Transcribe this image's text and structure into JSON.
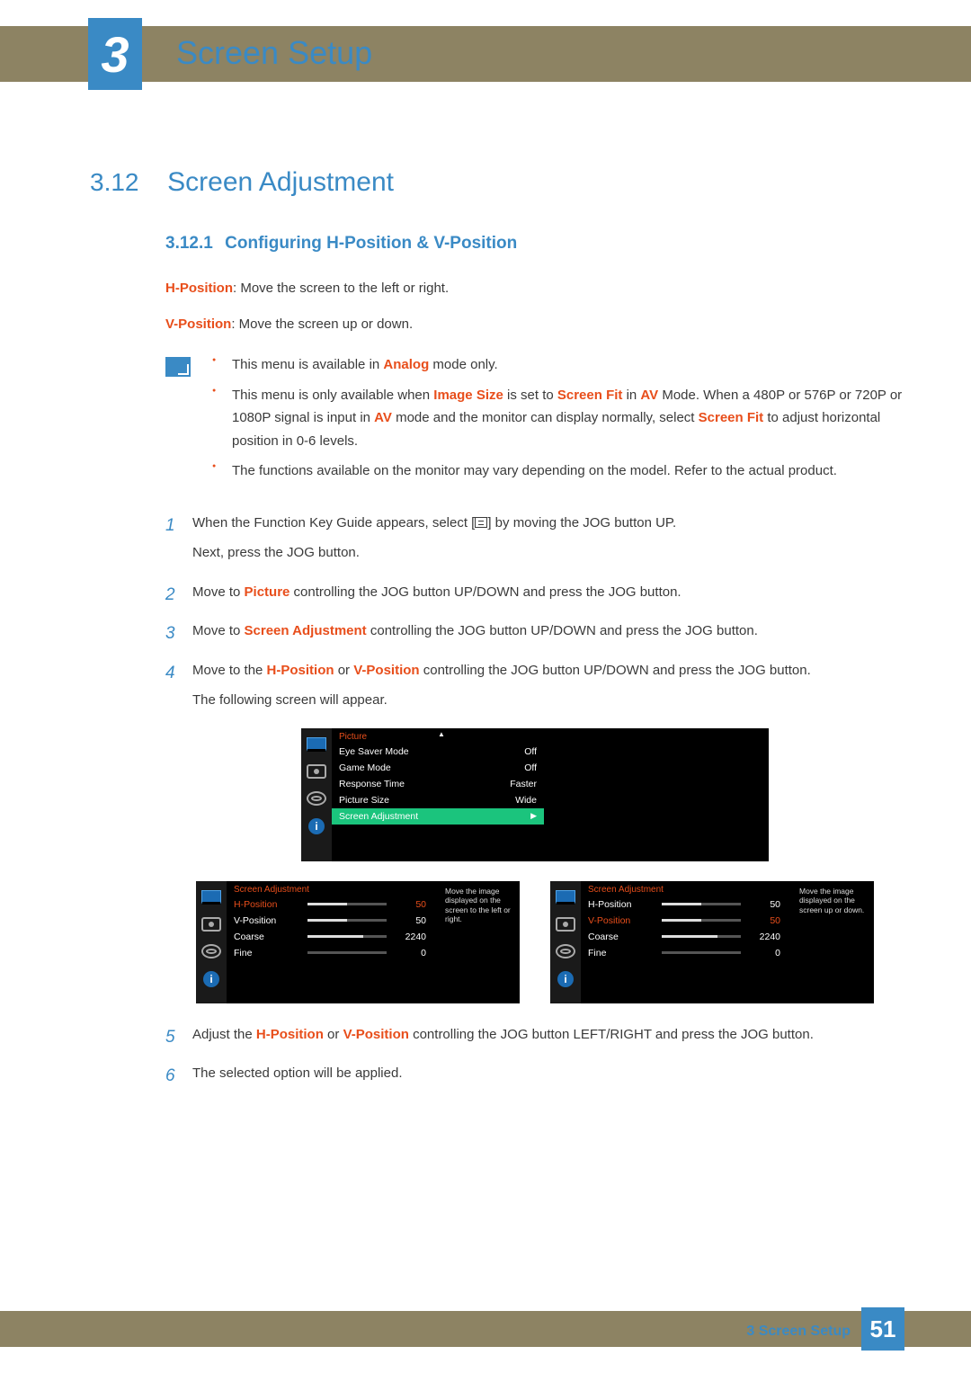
{
  "chapter": {
    "number": "3",
    "title": "Screen Setup"
  },
  "section": {
    "number": "3.12",
    "title": "Screen Adjustment"
  },
  "subsection": {
    "number": "3.12.1",
    "title": "Configuring H-Position & V-Position"
  },
  "intro": {
    "hpos_label": "H-Position",
    "hpos_text": ": Move the screen to the left or right.",
    "vpos_label": "V-Position",
    "vpos_text": ": Move the screen up or down."
  },
  "notes": {
    "b1_pre": "This menu is available in ",
    "b1_k1": "Analog",
    "b1_post": " mode only.",
    "b2_pre": "This menu is only available when ",
    "b2_k1": "Image Size",
    "b2_mid1": " is set to ",
    "b2_k2": "Screen Fit",
    "b2_mid2": " in ",
    "b2_k3": "AV",
    "b2_mid3": " Mode. When a 480P or 576P or 720P or 1080P signal is input in ",
    "b2_k4": "AV",
    "b2_mid4": " mode and the monitor can display normally, select ",
    "b2_k5": "Screen Fit",
    "b2_post": " to adjust horizontal position in 0-6 levels.",
    "b3": "The functions available on the monitor may vary depending on the model. Refer to the actual product."
  },
  "steps": {
    "s1a": "When the Function Key Guide appears, select [",
    "s1b": "] by moving the JOG button UP.",
    "s1c": "Next, press the JOG button.",
    "s2_pre": "Move to ",
    "s2_k": "Picture",
    "s2_post": " controlling the JOG button UP/DOWN and press the JOG button.",
    "s3_pre": "Move to ",
    "s3_k": "Screen Adjustment",
    "s3_post": " controlling the JOG button UP/DOWN and press the JOG button.",
    "s4_pre": "Move to the ",
    "s4_k1": "H-Position",
    "s4_or": " or ",
    "s4_k2": "V-Position",
    "s4_post": " controlling the JOG button UP/DOWN and press the JOG button.",
    "s4b": "The following screen will appear.",
    "s5_pre": "Adjust the ",
    "s5_k1": "H-Position",
    "s5_or": " or ",
    "s5_k2": "V-Position",
    "s5_post": " controlling the JOG button LEFT/RIGHT and press the JOG button.",
    "s6": "The selected option will be applied.",
    "n1": "1",
    "n2": "2",
    "n3": "3",
    "n4": "4",
    "n5": "5",
    "n6": "6"
  },
  "osd1": {
    "title": "Picture",
    "rows": [
      {
        "label": "Eye Saver Mode",
        "value": "Off"
      },
      {
        "label": "Game Mode",
        "value": "Off"
      },
      {
        "label": "Response Time",
        "value": "Faster"
      },
      {
        "label": "Picture Size",
        "value": "Wide"
      }
    ],
    "highlight": "Screen Adjustment",
    "col1_w": 236,
    "vals_w": 60
  },
  "osd2": {
    "title": "Screen Adjustment",
    "rows": [
      {
        "label": "H-Position",
        "value": "50",
        "pct": 50,
        "sel": true
      },
      {
        "label": "V-Position",
        "value": "50",
        "pct": 50,
        "sel": false
      },
      {
        "label": "Coarse",
        "value": "2240",
        "pct": 70,
        "sel": false
      },
      {
        "label": "Fine",
        "value": "0",
        "pct": 0,
        "sel": false
      }
    ],
    "desc": "Move the image displayed on the screen to the left or right."
  },
  "osd3": {
    "title": "Screen Adjustment",
    "rows": [
      {
        "label": "H-Position",
        "value": "50",
        "pct": 50,
        "sel": false
      },
      {
        "label": "V-Position",
        "value": "50",
        "pct": 50,
        "sel": true
      },
      {
        "label": "Coarse",
        "value": "2240",
        "pct": 70,
        "sel": false
      },
      {
        "label": "Fine",
        "value": "0",
        "pct": 0,
        "sel": false
      }
    ],
    "desc": "Move the image displayed on the screen up or down."
  },
  "footer": {
    "label": "3 Screen Setup",
    "page": "51"
  },
  "colors": {
    "blue": "#3a8ac5",
    "orange": "#e84e1b",
    "band": "#8d8363",
    "osd_green": "#1bc47d"
  }
}
